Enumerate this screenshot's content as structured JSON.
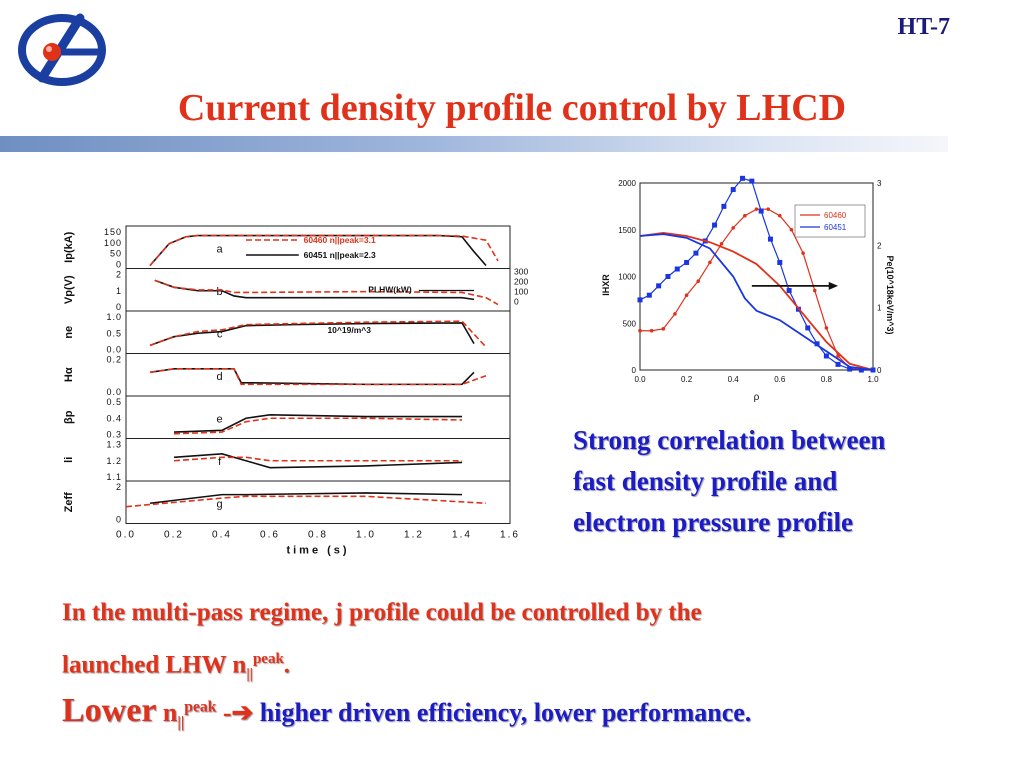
{
  "header": {
    "code": "HT-7",
    "title": "Current density profile control by LHCD"
  },
  "colors": {
    "title": "#e0321a",
    "body_blue": "#1c1cc4",
    "band_start": "#6f8fc2",
    "band_end": "#f4f6fb",
    "series_red": "#e0321a",
    "series_black": "#111111",
    "series_blue": "#1a36e0"
  },
  "correlation_text": "Strong correlation between fast density profile and electron pressure profile",
  "para1": {
    "line1": "In the multi-pass regime, j profile could be controlled by the",
    "line2_pre": "launched LHW n",
    "line2_sub": "||",
    "line2_sup": "peak",
    "line2_post": "."
  },
  "para2": {
    "lower": "Lower",
    "n": "n",
    "sub": "||",
    "sup": "peak",
    "arrow": " -➔ ",
    "rest": "higher driven efficiency,  lower performance."
  },
  "chart_data": [
    {
      "type": "line",
      "xlabel": "time (s)",
      "xlim": [
        0.0,
        1.6
      ],
      "x_ticks": [
        "0.0",
        "0.2",
        "0.4",
        "0.6",
        "0.8",
        "1.0",
        "1.2",
        "1.4",
        "1.6"
      ],
      "panels": [
        {
          "label": "a",
          "ylabel": "Ip(kA)",
          "ylim": [
            0,
            150
          ],
          "yticks": [
            "150",
            "100",
            "50",
            "0"
          ],
          "legend": [
            {
              "name": "60460 n||peak=3.1",
              "color": "#e0321a",
              "dashed": true
            },
            {
              "name": "60451 n||peak=2.3",
              "color": "#111111",
              "dashed": false
            }
          ],
          "series": [
            {
              "name": "60451",
              "x": [
                0.1,
                0.18,
                0.25,
                0.3,
                0.5,
                1.0,
                1.3,
                1.4,
                1.45,
                1.5
              ],
              "y": [
                0,
                95,
                125,
                130,
                130,
                130,
                130,
                125,
                60,
                0
              ]
            },
            {
              "name": "60460",
              "x": [
                0.1,
                0.18,
                0.25,
                0.3,
                0.5,
                1.0,
                1.3,
                1.4,
                1.5,
                1.55
              ],
              "y": [
                0,
                95,
                125,
                130,
                130,
                130,
                130,
                128,
                110,
                20
              ]
            }
          ]
        },
        {
          "label": "b",
          "ylabel": "Vp(V)",
          "ylim": [
            0,
            2
          ],
          "yticks": [
            "2",
            "1",
            "0"
          ],
          "right_axis": {
            "label": "PLHW(kW)",
            "ticks": [
              "300",
              "200",
              "100",
              "0"
            ]
          },
          "series": [
            {
              "name": "60451",
              "x": [
                0.12,
                0.2,
                0.3,
                0.4,
                0.45,
                0.5,
                1.0,
                1.4,
                1.45
              ],
              "y": [
                1.6,
                1.2,
                1.0,
                1.0,
                0.7,
                0.6,
                0.6,
                0.6,
                0.5
              ]
            },
            {
              "name": "60460",
              "x": [
                0.12,
                0.2,
                0.3,
                0.4,
                0.45,
                0.5,
                1.0,
                1.4,
                1.5,
                1.55
              ],
              "y": [
                1.6,
                1.2,
                1.05,
                1.05,
                0.9,
                0.9,
                0.95,
                0.9,
                0.6,
                0.2
              ]
            }
          ]
        },
        {
          "label": "c",
          "ylabel": "ne",
          "unit": "10^19/m^3",
          "ylim": [
            0,
            1.0
          ],
          "yticks": [
            "1.0",
            "0.5",
            "0.0"
          ],
          "series": [
            {
              "name": "60451",
              "x": [
                0.1,
                0.2,
                0.3,
                0.4,
                0.5,
                0.7,
                1.0,
                1.4,
                1.45
              ],
              "y": [
                0.15,
                0.4,
                0.5,
                0.55,
                0.72,
                0.75,
                0.78,
                0.8,
                0.2
              ]
            },
            {
              "name": "60460",
              "x": [
                0.1,
                0.2,
                0.3,
                0.4,
                0.5,
                0.7,
                1.0,
                1.4,
                1.5
              ],
              "y": [
                0.15,
                0.4,
                0.55,
                0.6,
                0.75,
                0.78,
                0.82,
                0.85,
                0.1
              ]
            }
          ]
        },
        {
          "label": "d",
          "ylabel": "Hα",
          "ylim": [
            0,
            0.2
          ],
          "yticks": [
            "0.2",
            "0.0"
          ],
          "series": [
            {
              "name": "60451",
              "x": [
                0.1,
                0.2,
                0.45,
                0.48,
                1.0,
                1.4,
                1.45
              ],
              "y": [
                0.12,
                0.14,
                0.14,
                0.06,
                0.05,
                0.05,
                0.12
              ]
            },
            {
              "name": "60460",
              "x": [
                0.1,
                0.2,
                0.45,
                0.48,
                1.0,
                1.4,
                1.5
              ],
              "y": [
                0.12,
                0.14,
                0.14,
                0.05,
                0.05,
                0.05,
                0.1
              ]
            }
          ]
        },
        {
          "label": "e",
          "ylabel": "βp",
          "ylim": [
            0.3,
            0.5
          ],
          "yticks": [
            "0.5",
            "0.4",
            "0.3"
          ],
          "series": [
            {
              "name": "60451",
              "x": [
                0.2,
                0.4,
                0.5,
                0.6,
                1.0,
                1.4
              ],
              "y": [
                0.32,
                0.33,
                0.4,
                0.42,
                0.41,
                0.41
              ]
            },
            {
              "name": "60460",
              "x": [
                0.2,
                0.4,
                0.5,
                0.6,
                1.0,
                1.4
              ],
              "y": [
                0.31,
                0.32,
                0.38,
                0.4,
                0.4,
                0.39
              ]
            }
          ]
        },
        {
          "label": "f",
          "ylabel": "li",
          "ylim": [
            1.1,
            1.3
          ],
          "yticks": [
            "1.3",
            "1.2",
            "1.1"
          ],
          "series": [
            {
              "name": "60451",
              "x": [
                0.2,
                0.4,
                0.5,
                0.6,
                1.0,
                1.4
              ],
              "y": [
                1.22,
                1.24,
                1.2,
                1.16,
                1.17,
                1.19
              ]
            },
            {
              "name": "60460",
              "x": [
                0.2,
                0.4,
                0.5,
                0.6,
                1.0,
                1.4
              ],
              "y": [
                1.2,
                1.22,
                1.22,
                1.2,
                1.2,
                1.2
              ]
            }
          ]
        },
        {
          "label": "g",
          "ylabel": "Zeff",
          "ylim": [
            0,
            2
          ],
          "yticks": [
            "2",
            "0"
          ],
          "series": [
            {
              "name": "60451",
              "x": [
                0.1,
                0.4,
                0.5,
                1.0,
                1.4
              ],
              "y": [
                1.0,
                1.5,
                1.5,
                1.6,
                1.5
              ]
            },
            {
              "name": "60460",
              "x": [
                0.0,
                0.4,
                0.5,
                1.0,
                1.5
              ],
              "y": [
                0.8,
                1.3,
                1.4,
                1.4,
                1.0
              ]
            }
          ]
        }
      ]
    },
    {
      "type": "line",
      "xlabel": "ρ",
      "ylabel": "IHXR",
      "y2label": "Pe(10^18keV/m^3)",
      "xlim": [
        0.0,
        1.0
      ],
      "ylim": [
        0,
        2000
      ],
      "y2lim": [
        0,
        3
      ],
      "x_ticks": [
        "0.0",
        "0.2",
        "0.4",
        "0.6",
        "0.8",
        "1.0"
      ],
      "y_ticks": [
        "0",
        "500",
        "1000",
        "1500",
        "2000"
      ],
      "y2_ticks": [
        "0",
        "1",
        "2",
        "3"
      ],
      "legend_position": "top-right",
      "series": [
        {
          "name": "60460",
          "kind": "IHXR",
          "marker": "circle",
          "x": [
            0,
            0.05,
            0.1,
            0.15,
            0.2,
            0.25,
            0.3,
            0.35,
            0.4,
            0.45,
            0.5,
            0.55,
            0.6,
            0.65,
            0.7,
            0.75,
            0.8,
            0.85,
            0.9,
            0.95,
            1.0
          ],
          "y": [
            420,
            420,
            440,
            600,
            800,
            950,
            1150,
            1350,
            1520,
            1650,
            1720,
            1720,
            1650,
            1500,
            1250,
            850,
            450,
            150,
            20,
            0,
            0
          ]
        },
        {
          "name": "60451",
          "kind": "IHXR",
          "marker": "square",
          "x": [
            0,
            0.04,
            0.08,
            0.12,
            0.16,
            0.2,
            0.24,
            0.28,
            0.32,
            0.36,
            0.4,
            0.44,
            0.48,
            0.52,
            0.56,
            0.6,
            0.64,
            0.68,
            0.72,
            0.76,
            0.8,
            0.85,
            0.9,
            0.95,
            1.0
          ],
          "y": [
            750,
            800,
            900,
            1000,
            1080,
            1150,
            1250,
            1380,
            1550,
            1750,
            1930,
            2050,
            2020,
            1700,
            1400,
            1150,
            850,
            650,
            450,
            280,
            150,
            60,
            10,
            0,
            0
          ]
        },
        {
          "name": "60460 Pe",
          "kind": "Pe",
          "x": [
            0,
            0.1,
            0.2,
            0.3,
            0.4,
            0.5,
            0.6,
            0.7,
            0.8,
            0.9,
            1.0
          ],
          "y": [
            2.15,
            2.2,
            2.15,
            2.05,
            1.9,
            1.7,
            1.35,
            0.9,
            0.45,
            0.1,
            0.0
          ]
        },
        {
          "name": "60451 Pe",
          "kind": "Pe",
          "x": [
            0,
            0.1,
            0.2,
            0.3,
            0.4,
            0.45,
            0.5,
            0.6,
            0.7,
            0.8,
            0.9,
            1.0
          ],
          "y": [
            2.15,
            2.18,
            2.12,
            1.95,
            1.5,
            1.15,
            0.95,
            0.8,
            0.55,
            0.3,
            0.05,
            0.0
          ]
        }
      ]
    }
  ]
}
